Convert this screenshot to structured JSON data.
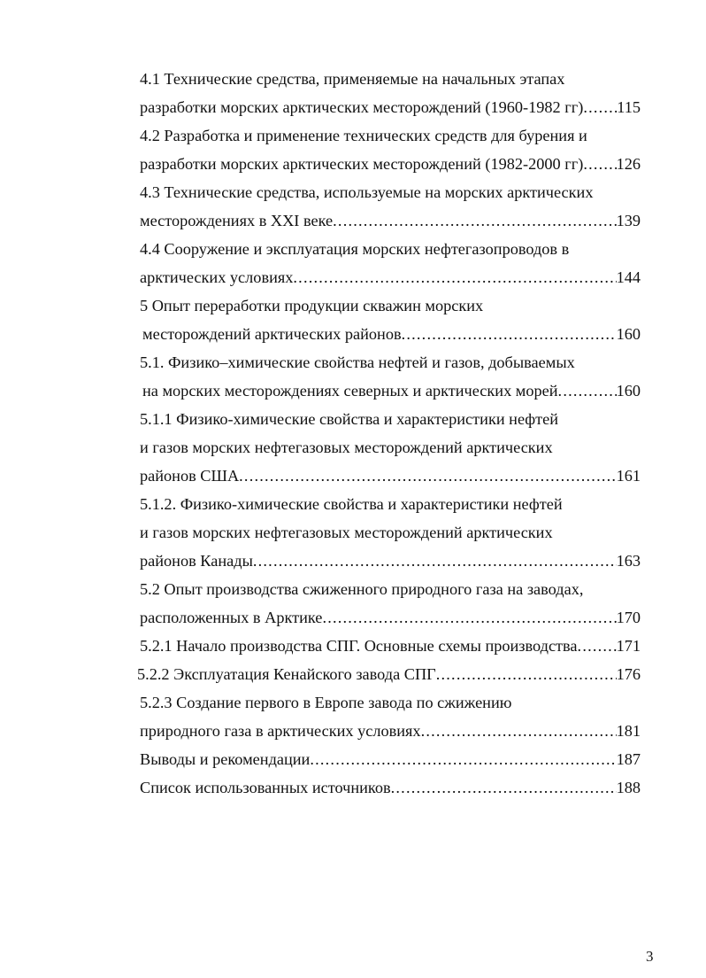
{
  "toc": [
    {
      "text": "4.1 Технические средства, применяемые на начальных этапах"
    },
    {
      "text": "разработки морских арктических месторождений (1960-1982 гг)",
      "page": "115"
    },
    {
      "text": "4.2 Разработка и применение технических средств для бурения и"
    },
    {
      "text": "разработки морских арктических месторождений (1982-2000 гг)",
      "page": "126"
    },
    {
      "text": "4.3 Технические средства, используемые на морских арктических"
    },
    {
      "text": "месторождениях в XXI веке",
      "page": "139"
    },
    {
      "text": "4.4 Сооружение и эксплуатация морских нефтегазопроводов в"
    },
    {
      "text": "арктических условиях",
      "page": "144"
    },
    {
      "text": "5 Опыт переработки продукции скважин морских"
    },
    {
      "text": "месторождений арктических районов",
      "page": "160",
      "indent": true
    },
    {
      "text": "5.1. Физико–химические свойства нефтей и газов, добываемых"
    },
    {
      "text": "на морских месторождениях северных и арктических морей",
      "page": "160",
      "indent": true
    },
    {
      "text": "5.1.1 Физико-химические свойства и характеристики нефтей"
    },
    {
      "text": "и газов морских нефтегазовых месторождений арктических"
    },
    {
      "text": "районов США",
      "page": "161"
    },
    {
      "text": "5.1.2. Физико-химические свойства и характеристики нефтей"
    },
    {
      "text": "и газов морских нефтегазовых месторождений арктических"
    },
    {
      "text": "районов Канады",
      "page": "163"
    },
    {
      "text": "5.2 Опыт производства сжиженного природного газа на заводах,"
    },
    {
      "text": "расположенных в Арктике",
      "page": "170"
    },
    {
      "text": "5.2.1 Начало производства СПГ. Основные схемы производства",
      "page": "171"
    },
    {
      "text": "5.2.2 Эксплуатация Кенайского завода СПГ",
      "page": "176",
      "outdent": true
    },
    {
      "text": "5.2.3 Создание первого в Европе завода по сжижению"
    },
    {
      "text": "природного газа в арктических условиях",
      "page": "181"
    },
    {
      "text": "Выводы и рекомендации",
      "page": "187"
    },
    {
      "text": "Список использованных источников",
      "page": "188"
    }
  ],
  "page_number": "3"
}
